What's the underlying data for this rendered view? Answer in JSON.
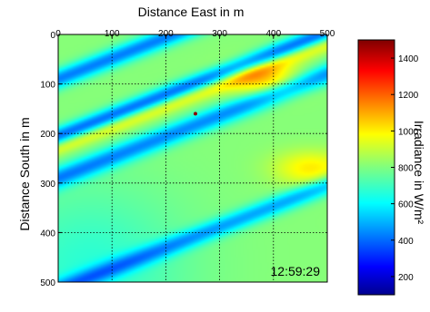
{
  "chart_data": {
    "type": "heatmap",
    "title": "Distance East in m",
    "xlabel": "",
    "ylabel": "Distance South in m",
    "xlim": [
      0,
      500
    ],
    "ylim": [
      0,
      500
    ],
    "x_ticks": [
      "0",
      "100",
      "200",
      "300",
      "400",
      "500"
    ],
    "y_ticks": [
      "0",
      "100",
      "200",
      "300",
      "400",
      "500"
    ],
    "x_tick_values": [
      0,
      100,
      200,
      300,
      400,
      500
    ],
    "y_tick_values": [
      0,
      100,
      200,
      300,
      400,
      500
    ],
    "x_axis_position": "top",
    "y_axis_direction": "down",
    "grid": true,
    "timestamp": "12:59:29",
    "marker": {
      "x": 255,
      "y": 160
    },
    "colorbar": {
      "label": "Irradiance in W/m²",
      "range": [
        100,
        1500
      ],
      "ticks": [
        "200",
        "400",
        "600",
        "800",
        "1000",
        "1200",
        "1400"
      ],
      "tick_values": [
        200,
        400,
        600,
        800,
        1000,
        1200,
        1400
      ],
      "colormap": "jet"
    },
    "field": {
      "background": 810,
      "bands": [
        {
          "type": "shadow",
          "intercept": 90,
          "slope": -0.42,
          "depth": 360,
          "width": 20
        },
        {
          "type": "shadow",
          "intercept": 205,
          "slope": -0.42,
          "depth": 380,
          "width": 18
        },
        {
          "type": "bright",
          "intercept": 230,
          "slope": -0.42,
          "depth": 150,
          "width": 16
        },
        {
          "type": "shadow",
          "intercept": 290,
          "slope": -0.42,
          "depth": 340,
          "width": 22
        },
        {
          "type": "shadow",
          "intercept": 515,
          "slope": -0.42,
          "depth": 300,
          "width": 20
        }
      ],
      "hotspots": [
        {
          "x": 380,
          "y": 90,
          "value": 1050
        },
        {
          "x": 470,
          "y": 270,
          "value": 1000
        }
      ],
      "low_region_value": 600
    }
  }
}
